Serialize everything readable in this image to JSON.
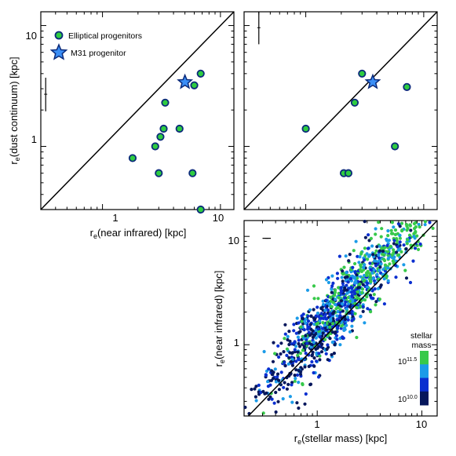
{
  "chart_data": [
    {
      "type": "scatter",
      "scale": "log-log",
      "xlabel": "r_e(near infrared) [kpc]",
      "ylabel": "r_e(dust continuum) [kpc]",
      "xlim": [
        0.3,
        13
      ],
      "ylim": [
        0.3,
        13
      ],
      "x_ticks": [
        "1",
        "10"
      ],
      "y_ticks": [
        "1",
        "10"
      ],
      "one_to_one_line": true,
      "legend": {
        "placement": "top-left",
        "entries": [
          "Elliptical progenitors",
          "M31 progenitor"
        ]
      },
      "error_bar": {
        "x": 0.33,
        "y": 2.7,
        "ylow": 1.95,
        "yhigh": 3.7
      },
      "series": [
        {
          "name": "Elliptical progenitors",
          "marker": "circle",
          "color": "#2ecc40",
          "points": [
            [
              1.8,
              0.8
            ],
            [
              2.8,
              1.0
            ],
            [
              3.0,
              0.6
            ],
            [
              3.1,
              1.2
            ],
            [
              3.3,
              1.4
            ],
            [
              3.4,
              2.3
            ],
            [
              4.5,
              1.4
            ],
            [
              5.8,
              0.6
            ],
            [
              6.0,
              3.2
            ],
            [
              6.8,
              4.0
            ],
            [
              6.8,
              0.3
            ]
          ]
        },
        {
          "name": "M31 progenitor",
          "marker": "star",
          "color": "#3a8ef6",
          "points": [
            [
              5.0,
              3.4
            ]
          ]
        }
      ]
    },
    {
      "type": "scatter",
      "scale": "log-log",
      "xlim": [
        0.3,
        13
      ],
      "ylim": [
        0.3,
        13
      ],
      "one_to_one_line": true,
      "error_bar": {
        "x": 0.4,
        "y": 9.6,
        "ylow": 7.0,
        "yhigh": 13.0
      },
      "series": [
        {
          "name": "Elliptical progenitors",
          "marker": "circle",
          "color": "#2ecc40",
          "points": [
            [
              1.0,
              1.4
            ],
            [
              2.1,
              0.6
            ],
            [
              2.3,
              0.6
            ],
            [
              2.6,
              2.3
            ],
            [
              3.0,
              4.0
            ],
            [
              5.7,
              1.0
            ],
            [
              7.2,
              3.1
            ]
          ]
        },
        {
          "name": "M31 progenitor",
          "marker": "star",
          "color": "#3a8ef6",
          "points": [
            [
              3.7,
              3.4
            ]
          ]
        }
      ]
    },
    {
      "type": "scatter",
      "scale": "log-log",
      "xlabel": "r_e(stellar mass) [kpc]",
      "ylabel": "r_e(near infrared) [kpc]",
      "xlim": [
        0.2,
        14
      ],
      "ylim": [
        0.22,
        14
      ],
      "x_ticks": [
        "1",
        "10"
      ],
      "y_ticks": [
        "1",
        "10"
      ],
      "one_to_one_line": true,
      "error_bar": {
        "x": 0.33,
        "y": 9.6,
        "xlow": 0.3,
        "xhigh": 0.36
      },
      "colorbar": {
        "title_line1": "stellar",
        "title_line2": "mass",
        "label_high": "10^11.5",
        "label_low": "10^10.0",
        "colors": [
          "#06175c",
          "#0a2fd0",
          "#1b9be8",
          "#37c94a"
        ]
      },
      "point_count_shown": 1200,
      "trend": {
        "description": "dense cloud of galaxies lying mostly above the 1:1 line; higher stellar mass (green) at larger radii"
      }
    }
  ],
  "panel_c_xlabel_text": "r",
  "panel_c_xlabel_sub": "e",
  "panel_c_xlabel_rest": "(stellar mass) [kpc]",
  "panel_c_ylabel_text": "r",
  "panel_c_ylabel_sub": "e",
  "panel_c_ylabel_rest": "(near infrared) [kpc]",
  "panel_a_xlabel_text": "r",
  "panel_a_xlabel_sub": "e",
  "panel_a_xlabel_rest": "(near infrared) [kpc]",
  "panel_a_ylabel_text": "r",
  "panel_a_ylabel_sub": "e",
  "panel_a_ylabel_rest": "(dust continuum) [kpc]",
  "tick_1": "1",
  "tick_10": "10",
  "legend_elliptical": "Elliptical progenitors",
  "legend_m31": "M31 progenitor",
  "colorbar_title_1": "stellar",
  "colorbar_title_2": "mass",
  "colorbar_high_base": "10",
  "colorbar_high_exp": "11.5",
  "colorbar_low_base": "10",
  "colorbar_low_exp": "10.0"
}
